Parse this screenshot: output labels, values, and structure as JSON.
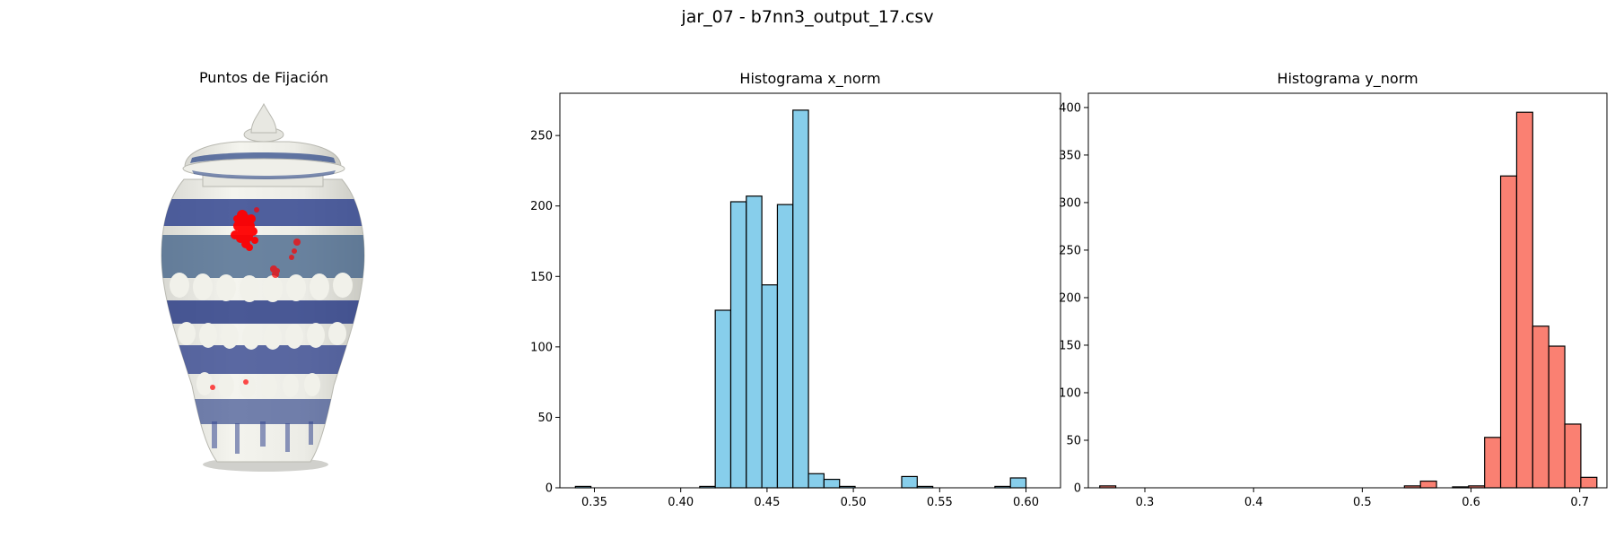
{
  "figure": {
    "suptitle": "jar_07 - b7nn3_output_17.csv"
  },
  "panels": {
    "fixation": {
      "title": "Puntos de Fijación"
    }
  },
  "colors": {
    "hist_x": "#87ceeb",
    "hist_y": "#fa8072",
    "fixation": "#ff0000",
    "edge": "#000000"
  },
  "chart_data": [
    {
      "type": "bar",
      "title": "Histograma x_norm",
      "xlabel": "",
      "ylabel": "",
      "xlim": [
        0.33,
        0.62
      ],
      "ylim": [
        0,
        280
      ],
      "xticks": [
        0.35,
        0.4,
        0.45,
        0.5,
        0.55,
        0.6
      ],
      "xtick_labels": [
        "0.35",
        "0.40",
        "0.45",
        "0.50",
        "0.55",
        "0.60"
      ],
      "yticks": [
        0,
        50,
        100,
        150,
        200,
        250
      ],
      "grid": false,
      "bin_start": 0.339,
      "bin_width": 0.009,
      "values": [
        1,
        0,
        0,
        0,
        0,
        0,
        0,
        0,
        1,
        126,
        203,
        207,
        144,
        201,
        268,
        10,
        6,
        1,
        0,
        0,
        0,
        8,
        1,
        0,
        0,
        0,
        0,
        1,
        7
      ]
    },
    {
      "type": "bar",
      "title": "Histograma y_norm",
      "xlabel": "",
      "ylabel": "",
      "xlim": [
        0.248,
        0.725
      ],
      "ylim": [
        0,
        415
      ],
      "xticks": [
        0.3,
        0.4,
        0.5,
        0.6,
        0.7
      ],
      "xtick_labels": [
        "0.3",
        "0.4",
        "0.5",
        "0.6",
        "0.7"
      ],
      "yticks": [
        0,
        50,
        100,
        150,
        200,
        250,
        300,
        350,
        400
      ],
      "grid": false,
      "bin_start": 0.2585,
      "bin_width": 0.01475,
      "values": [
        2,
        0,
        0,
        0,
        0,
        0,
        0,
        0,
        0,
        0,
        0,
        0,
        0,
        0,
        0,
        0,
        0,
        0,
        0,
        2,
        7,
        0,
        1,
        2,
        53,
        328,
        395,
        170,
        149,
        67,
        11
      ]
    }
  ]
}
